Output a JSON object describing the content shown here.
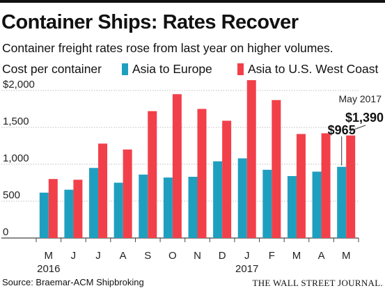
{
  "header": {
    "title": "Container Ships: Rates Recover",
    "subtitle": "Container freight rates rose from last year on higher volumes."
  },
  "legend": {
    "label": "Cost per container",
    "items": [
      "Asia to Europe",
      "Asia to U.S. West Coast"
    ]
  },
  "colors": {
    "europe": "#1f9fbf",
    "west_coast": "#f2404a",
    "grid": "#bdbdbd",
    "axis": "#444444"
  },
  "chart_data": {
    "type": "bar",
    "categories": [
      "M",
      "J",
      "J",
      "A",
      "S",
      "O",
      "N",
      "D",
      "J",
      "F",
      "M",
      "A",
      "M"
    ],
    "year_labels": [
      {
        "index": 0,
        "label": "2016"
      },
      {
        "index": 8,
        "label": "2017"
      }
    ],
    "series": [
      {
        "name": "Asia to Europe",
        "values": [
          615,
          655,
          950,
          750,
          860,
          820,
          830,
          1040,
          1080,
          925,
          840,
          900,
          965
        ]
      },
      {
        "name": "Asia to U.S. West Coast",
        "values": [
          800,
          790,
          1280,
          1200,
          1720,
          1950,
          1750,
          1590,
          2140,
          1870,
          1410,
          1420,
          1390
        ]
      }
    ],
    "ylabel": "Cost per container",
    "yticks": [
      "$2,000",
      "1,500",
      "1,000",
      "500",
      "0"
    ],
    "ylim": [
      0,
      2000
    ],
    "grid": true,
    "annotations": {
      "date_label": "May 2017",
      "europe_value": "$965",
      "west_coast_value": "$1,390"
    }
  },
  "footer": {
    "source": "Source: Braemar-ACM Shipbroking",
    "publisher": "THE WALL STREET JOURNAL."
  }
}
